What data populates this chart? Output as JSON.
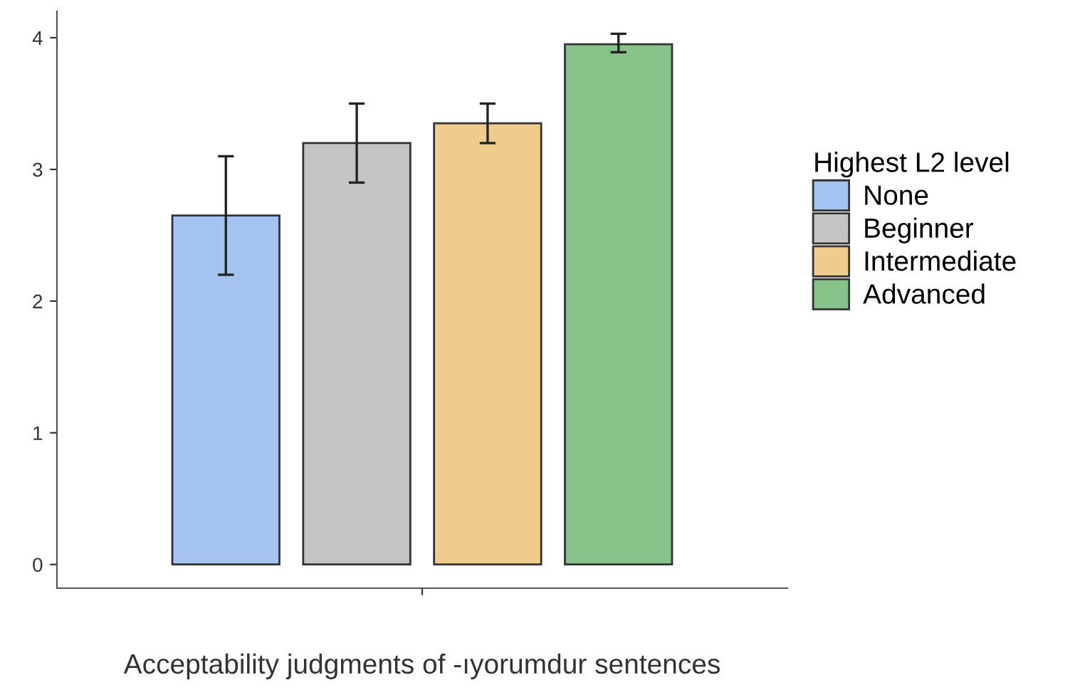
{
  "chart_data": {
    "type": "bar",
    "categories": [
      null
    ],
    "xlabel": "Acceptability judgments of -ıyorumdur sentences",
    "legend_title": "Highest L2 level",
    "legend": "right",
    "grid": false,
    "ylim": [
      -0.18,
      4.2
    ],
    "yticks": [
      0,
      1,
      2,
      3,
      4
    ],
    "series": [
      {
        "name": "None",
        "color": "#a4c3f1",
        "values": [
          2.65
        ],
        "errors": [
          [
            2.2,
            3.1
          ]
        ]
      },
      {
        "name": "Beginner",
        "color": "#c4c4c4",
        "values": [
          3.2
        ],
        "errors": [
          [
            2.9,
            3.5
          ]
        ]
      },
      {
        "name": "Intermediate",
        "color": "#efcc8b",
        "values": [
          3.35
        ],
        "errors": [
          [
            3.2,
            3.5
          ]
        ]
      },
      {
        "name": "Advanced",
        "color": "#87c389",
        "values": [
          3.95
        ],
        "errors": [
          [
            3.89,
            4.03
          ]
        ]
      }
    ]
  }
}
